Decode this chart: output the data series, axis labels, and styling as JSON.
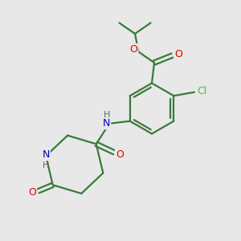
{
  "background_color": "#e8e8e8",
  "bond_color": "#3a7a3a",
  "line_width": 1.6,
  "atom_colors": {
    "O": "#dd0000",
    "N": "#0000cc",
    "Cl": "#33cc33",
    "C": "#3a7a3a",
    "H": "#666666"
  },
  "figsize": [
    3.0,
    3.0
  ],
  "dpi": 100
}
